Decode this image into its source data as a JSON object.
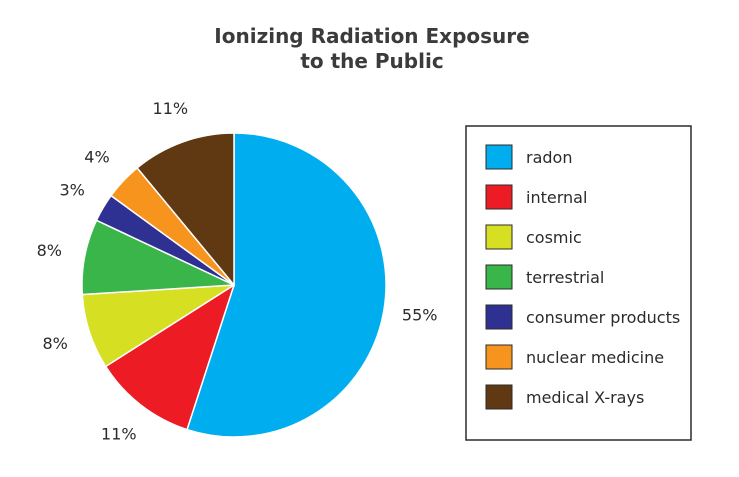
{
  "chart_data": {
    "type": "pie",
    "title_lines": [
      "Ionizing Radiation Exposure",
      "to the Public"
    ],
    "start_angle_deg": 0,
    "direction": "clockwise",
    "legend_position": "right",
    "slices": [
      {
        "name": "radon",
        "value": 55,
        "label": "55%",
        "color": "#00aeef"
      },
      {
        "name": "internal",
        "value": 11,
        "label": "11%",
        "color": "#ed1c24"
      },
      {
        "name": "cosmic",
        "value": 8,
        "label": "8%",
        "color": "#d7df23"
      },
      {
        "name": "terrestrial",
        "value": 8,
        "label": "8%",
        "color": "#39b54a"
      },
      {
        "name": "consumer products",
        "value": 3,
        "label": "3%",
        "color": "#2e3192"
      },
      {
        "name": "nuclear medicine",
        "value": 4,
        "label": "4%",
        "color": "#f7941d"
      },
      {
        "name": "medical X-rays",
        "value": 11,
        "label": "11%",
        "color": "#603913"
      }
    ]
  }
}
